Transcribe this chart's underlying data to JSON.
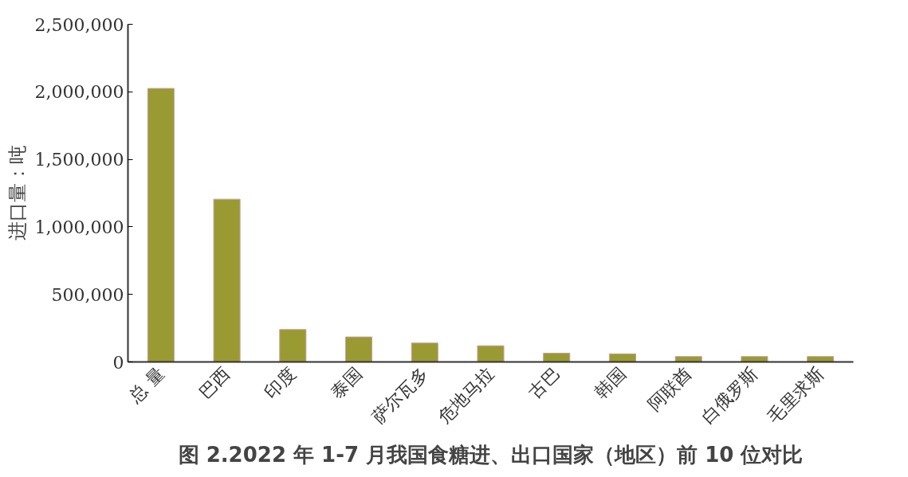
{
  "chart_data": {
    "type": "bar",
    "title": "图 2.2022 年 1-7 月我国食糖进、出口国家（地区）前 10 位对比",
    "ylabel": "进口量：吨",
    "categories": [
      "总 量",
      "巴西",
      "印度",
      "泰国",
      "萨尔瓦多",
      "危地马拉",
      "古巴",
      "韩国",
      "阿联酋",
      "白俄罗斯",
      "毛里求斯"
    ],
    "values": [
      2025000,
      1205000,
      240000,
      185000,
      140000,
      120000,
      65000,
      60000,
      40000,
      40000,
      40000
    ],
    "color": "#9a9a32",
    "ylim": [
      0,
      2500000
    ],
    "yticks": [
      {
        "value": 0,
        "label": "0"
      },
      {
        "value": 500000,
        "label": "500,000"
      },
      {
        "value": 1000000,
        "label": "1,000,000"
      },
      {
        "value": 1500000,
        "label": "1,500,000"
      },
      {
        "value": 2000000,
        "label": "2,000,000"
      },
      {
        "value": 2500000,
        "label": "2,500,000"
      }
    ],
    "grid": false
  }
}
